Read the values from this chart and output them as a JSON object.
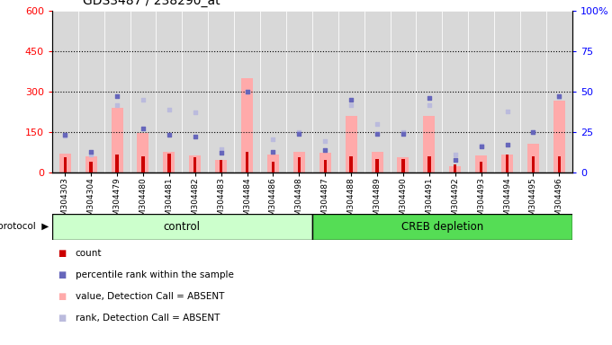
{
  "title": "GDS3487 / 238290_at",
  "samples": [
    "GSM304303",
    "GSM304304",
    "GSM304479",
    "GSM304480",
    "GSM304481",
    "GSM304482",
    "GSM304483",
    "GSM304484",
    "GSM304486",
    "GSM304498",
    "GSM304487",
    "GSM304488",
    "GSM304489",
    "GSM304490",
    "GSM304491",
    "GSM304492",
    "GSM304493",
    "GSM304494",
    "GSM304495",
    "GSM304496"
  ],
  "count_values": [
    55,
    40,
    65,
    60,
    70,
    55,
    45,
    75,
    40,
    55,
    45,
    60,
    50,
    50,
    60,
    30,
    40,
    65,
    60,
    60
  ],
  "absent_values": [
    70,
    60,
    240,
    145,
    78,
    62,
    48,
    350,
    68,
    78,
    72,
    210,
    78,
    58,
    210,
    22,
    62,
    68,
    108,
    265
  ],
  "percentile_rank": [
    23,
    13,
    47,
    27,
    23,
    22,
    12,
    50,
    13,
    24,
    14,
    45,
    24,
    24,
    46,
    8,
    16,
    17,
    25,
    47
  ],
  "absent_rank_left": [
    135,
    68,
    248,
    268,
    232,
    222,
    88,
    300,
    122,
    150,
    118,
    248,
    178,
    148,
    250,
    68,
    100,
    225,
    148,
    278
  ],
  "control_count": 10,
  "ylim_left": [
    0,
    600
  ],
  "ylim_right": [
    0,
    100
  ],
  "yticks_left": [
    0,
    150,
    300,
    450,
    600
  ],
  "yticks_right": [
    0,
    25,
    50,
    75,
    100
  ],
  "bar_color_count": "#cc0000",
  "bar_color_absent": "#ffaaaa",
  "dot_color_rank": "#6666bb",
  "dot_color_absent_rank": "#bbbbdd",
  "control_bg": "#ccffcc",
  "creb_bg": "#55dd55",
  "col_bg": "#d8d8d8",
  "title_fontsize": 10,
  "tick_fontsize": 6.5
}
